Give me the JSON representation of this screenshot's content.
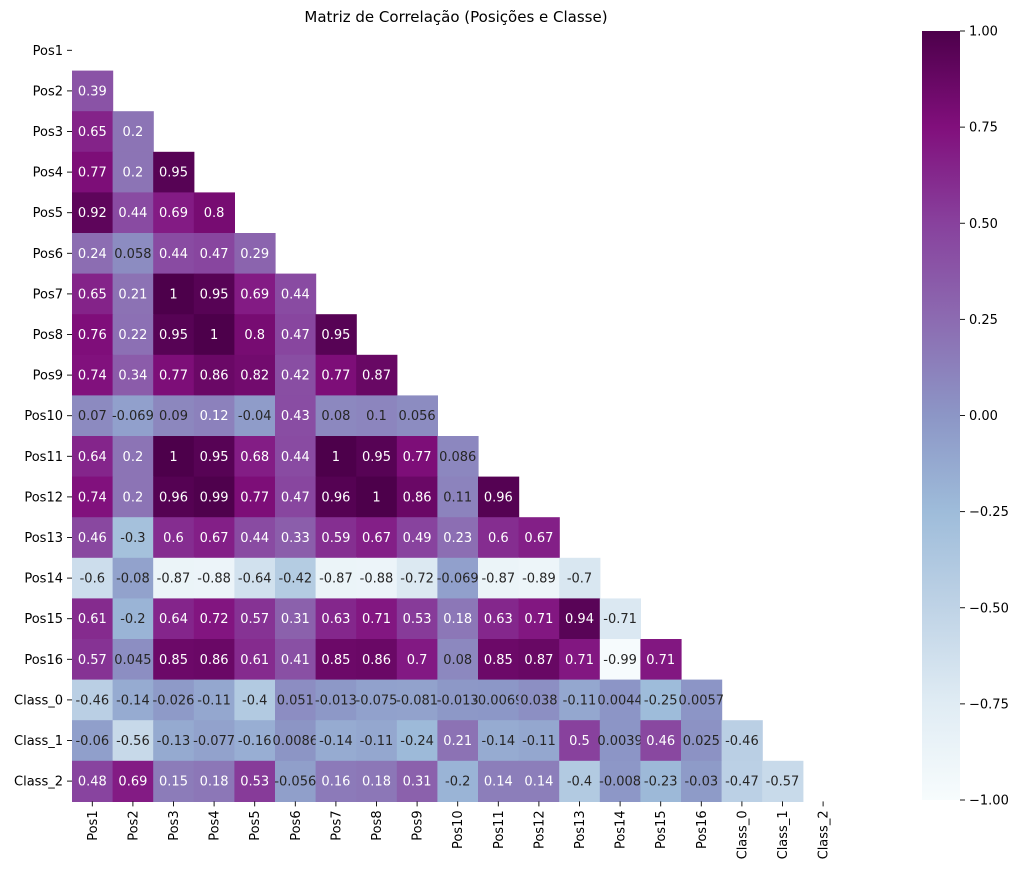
{
  "chart_data": {
    "type": "heatmap",
    "title": "Matriz de Correlação (Posições e Classe)",
    "xlabel": "",
    "ylabel": "",
    "mask": "upper-triangle-including-diagonal",
    "labels": [
      "Pos1",
      "Pos2",
      "Pos3",
      "Pos4",
      "Pos5",
      "Pos6",
      "Pos7",
      "Pos8",
      "Pos9",
      "Pos10",
      "Pos11",
      "Pos12",
      "Pos13",
      "Pos14",
      "Pos15",
      "Pos16",
      "Class_0",
      "Class_1",
      "Class_2"
    ],
    "annotations": [
      [],
      [
        "0.39"
      ],
      [
        "0.65",
        "0.2"
      ],
      [
        "0.77",
        "0.2",
        "0.95"
      ],
      [
        "0.92",
        "0.44",
        "0.69",
        "0.8"
      ],
      [
        "0.24",
        "0.058",
        "0.44",
        "0.47",
        "0.29"
      ],
      [
        "0.65",
        "0.21",
        "1",
        "0.95",
        "0.69",
        "0.44"
      ],
      [
        "0.76",
        "0.22",
        "0.95",
        "1",
        "0.8",
        "0.47",
        "0.95"
      ],
      [
        "0.74",
        "0.34",
        "0.77",
        "0.86",
        "0.82",
        "0.42",
        "0.77",
        "0.87"
      ],
      [
        "0.07",
        "-0.069",
        "0.09",
        "0.12",
        "-0.04",
        "0.43",
        "0.08",
        "0.1",
        "0.056"
      ],
      [
        "0.64",
        "0.2",
        "1",
        "0.95",
        "0.68",
        "0.44",
        "1",
        "0.95",
        "0.77",
        "0.086"
      ],
      [
        "0.74",
        "0.2",
        "0.96",
        "0.99",
        "0.77",
        "0.47",
        "0.96",
        "1",
        "0.86",
        "0.11",
        "0.96"
      ],
      [
        "0.46",
        "-0.3",
        "0.6",
        "0.67",
        "0.44",
        "0.33",
        "0.59",
        "0.67",
        "0.49",
        "0.23",
        "0.6",
        "0.67"
      ],
      [
        "-0.6",
        "-0.08",
        "-0.87",
        "-0.88",
        "-0.64",
        "-0.42",
        "-0.87",
        "-0.88",
        "-0.72",
        "-0.069",
        "-0.87",
        "-0.89",
        "-0.7"
      ],
      [
        "0.61",
        "-0.2",
        "0.64",
        "0.72",
        "0.57",
        "0.31",
        "0.63",
        "0.71",
        "0.53",
        "0.18",
        "0.63",
        "0.71",
        "0.94",
        "-0.71"
      ],
      [
        "0.57",
        "0.045",
        "0.85",
        "0.86",
        "0.61",
        "0.41",
        "0.85",
        "0.86",
        "0.7",
        "0.08",
        "0.85",
        "0.87",
        "0.71",
        "-0.99",
        "0.71"
      ],
      [
        "-0.46",
        "-0.14",
        "-0.026",
        "-0.11",
        "-0.4",
        "0.051",
        "-0.013",
        "-0.075",
        "-0.081",
        "-0.013",
        "-0.0069",
        "0.038",
        "-0.11",
        "0.0044",
        "-0.25",
        "0.0057"
      ],
      [
        "-0.06",
        "-0.56",
        "-0.13",
        "-0.077",
        "-0.16",
        "0.0086",
        "-0.14",
        "-0.11",
        "-0.24",
        "0.21",
        "-0.14",
        "-0.11",
        "0.5",
        "0.0039",
        "0.46",
        "0.025",
        "-0.46"
      ],
      [
        "0.48",
        "0.69",
        "0.15",
        "0.18",
        "0.53",
        "-0.056",
        "0.16",
        "0.18",
        "0.31",
        "-0.2",
        "0.14",
        "0.14",
        "-0.4",
        "-0.008",
        "-0.23",
        "-0.03",
        "-0.47",
        "-0.57"
      ]
    ],
    "colorbar": {
      "range": [
        -1,
        1
      ],
      "ticks": [
        "1.00",
        "0.75",
        "0.50",
        "0.25",
        "0.00",
        "−0.25",
        "−0.50",
        "−0.75",
        "−1.00"
      ],
      "tick_values": [
        1,
        0.75,
        0.5,
        0.25,
        0,
        -0.25,
        -0.5,
        -0.75,
        -1
      ],
      "colormap": "BuPu",
      "colormap_stops": [
        "#f7fcfd",
        "#e0ecf4",
        "#bfd3e6",
        "#9ebcda",
        "#8c96c6",
        "#8c6bb1",
        "#88419d",
        "#810f7c",
        "#4d004b"
      ]
    },
    "grid": false,
    "legend": "colorbar-right"
  }
}
